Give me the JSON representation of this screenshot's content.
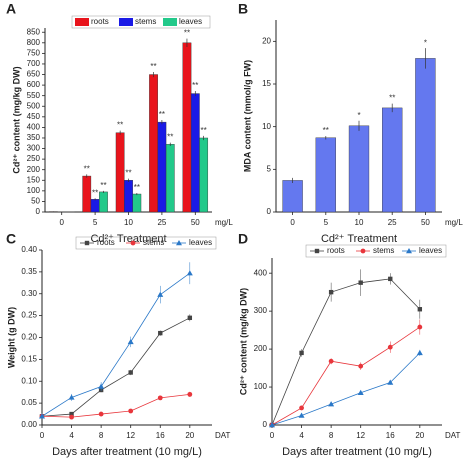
{
  "chart_data": [
    {
      "panel": "A",
      "type": "bar",
      "ylabel": "Cd²⁺ content (mg/kg DW)",
      "xlabel": "Cd²⁺ Treatment",
      "unit": "mg/L",
      "categories": [
        "0",
        "5",
        "10",
        "25",
        "50"
      ],
      "series": [
        {
          "name": "roots",
          "color": "#e8141c",
          "values": [
            2,
            170,
            375,
            650,
            800
          ],
          "errors": [
            1,
            8,
            10,
            12,
            20
          ],
          "significance": [
            null,
            "**",
            "**",
            "**",
            "**"
          ]
        },
        {
          "name": "stems",
          "color": "#1a1ae6",
          "values": [
            1,
            60,
            150,
            425,
            560
          ],
          "errors": [
            1,
            5,
            8,
            10,
            12
          ],
          "significance": [
            null,
            "**",
            "**",
            "**",
            "**"
          ]
        },
        {
          "name": "leaves",
          "color": "#22c98a",
          "values": [
            1,
            95,
            85,
            320,
            350
          ],
          "errors": [
            1,
            5,
            5,
            8,
            10
          ],
          "significance": [
            null,
            "**",
            "**",
            "**",
            "**"
          ]
        }
      ],
      "ylim": [
        0,
        870
      ],
      "yticks": [
        0,
        50,
        100,
        150,
        200,
        250,
        300,
        350,
        400,
        450,
        500,
        550,
        600,
        650,
        700,
        750,
        800,
        850
      ]
    },
    {
      "panel": "B",
      "type": "bar",
      "ylabel": "MDA content (mmol/g FW)",
      "xlabel": "Cd²⁺ Treatment",
      "unit": "mg/L",
      "categories": [
        "0",
        "5",
        "10",
        "25",
        "50"
      ],
      "color": "#6478ef",
      "values": [
        3.7,
        8.7,
        10.1,
        12.2,
        18.0
      ],
      "errors": [
        0.3,
        0.2,
        0.6,
        0.5,
        1.2
      ],
      "significance": [
        null,
        "**",
        "*",
        "**",
        "*"
      ],
      "ylim": [
        0,
        22.5
      ],
      "yticks": [
        0,
        5,
        10,
        15,
        20
      ]
    },
    {
      "panel": "C",
      "type": "line",
      "ylabel": "Weight (g DW)",
      "xlabel": "Days after treatment (10 mg/L)",
      "unit": "DAT",
      "x": [
        0,
        4,
        8,
        12,
        16,
        20
      ],
      "series": [
        {
          "name": "roots",
          "color": "#444444",
          "marker": "square",
          "values": [
            0.02,
            0.025,
            0.08,
            0.12,
            0.21,
            0.245
          ],
          "errors": [
            0.002,
            0.004,
            0.005,
            0.006,
            0.006,
            0.008
          ]
        },
        {
          "name": "stems",
          "color": "#e8363c",
          "marker": "circle",
          "values": [
            0.02,
            0.018,
            0.025,
            0.032,
            0.062,
            0.07
          ],
          "errors": [
            0.002,
            0.003,
            0.003,
            0.004,
            0.005,
            0.006
          ]
        },
        {
          "name": "leaves",
          "color": "#2a78c8",
          "marker": "triangle",
          "values": [
            0.02,
            0.063,
            0.088,
            0.19,
            0.298,
            0.347
          ],
          "errors": [
            0.002,
            0.008,
            0.01,
            0.012,
            0.02,
            0.025
          ]
        }
      ],
      "xlim": [
        0,
        23
      ],
      "xticks": [
        0,
        4,
        8,
        12,
        16,
        20
      ],
      "ylim": [
        0,
        0.4
      ],
      "yticks": [
        {
          "value": 0,
          "label": "0.00"
        },
        {
          "value": 0.05,
          "label": "0.05"
        },
        {
          "value": 0.1,
          "label": "0.10"
        },
        {
          "value": 0.15,
          "label": "0.15"
        },
        {
          "value": 0.2,
          "label": "0.20"
        },
        {
          "value": 0.25,
          "label": "0.25"
        },
        {
          "value": 0.3,
          "label": "0.30"
        },
        {
          "value": 0.35,
          "label": "0.35"
        },
        {
          "value": 0.4,
          "label": "0.40"
        }
      ]
    },
    {
      "panel": "D",
      "type": "line",
      "ylabel": "Cd²⁺ content (mg/kg DW)",
      "xlabel": "Days after treatment (10 mg/L)",
      "unit": "DAT",
      "x": [
        0,
        4,
        8,
        12,
        16,
        20
      ],
      "series": [
        {
          "name": "roots",
          "color": "#444444",
          "marker": "square",
          "values": [
            0,
            190,
            350,
            375,
            385,
            305
          ],
          "errors": [
            0,
            10,
            25,
            35,
            15,
            25
          ]
        },
        {
          "name": "stems",
          "color": "#e8363c",
          "marker": "circle",
          "values": [
            0,
            45,
            168,
            155,
            205,
            258
          ],
          "errors": [
            0,
            5,
            8,
            10,
            15,
            20
          ]
        },
        {
          "name": "leaves",
          "color": "#2a78c8",
          "marker": "triangle",
          "values": [
            0,
            25,
            55,
            85,
            112,
            190
          ],
          "errors": [
            0,
            3,
            4,
            5,
            6,
            8
          ]
        }
      ],
      "xlim": [
        0,
        23
      ],
      "xticks": [
        0,
        4,
        8,
        12,
        16,
        20
      ],
      "ylim": [
        0,
        440
      ],
      "yticks": [
        0,
        100,
        200,
        300,
        400
      ]
    }
  ]
}
